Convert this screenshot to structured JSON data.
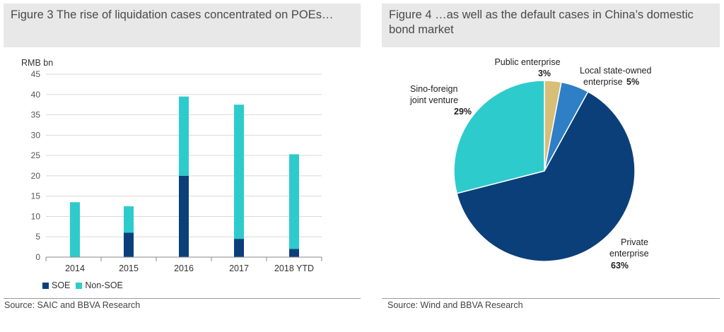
{
  "left_panel": {
    "title": "Figure 3 The rise of liquidation cases concentrated on POEs…",
    "source": "Source: SAIC and BBVA Research"
  },
  "right_panel": {
    "title": "Figure 4 …as well as the default cases in China’s domestic bond market",
    "source": "Source: Wind and BBVA Research"
  },
  "colors": {
    "soe": "#0b3f7a",
    "non_soe": "#2ecbcc",
    "grid": "#d9d9d9",
    "axis": "#888888",
    "pie_public": "#d8bf77",
    "pie_local": "#2e7fc6",
    "pie_private": "#0b3f7a",
    "pie_sino": "#2ecbcc"
  },
  "chart_data": [
    {
      "type": "bar",
      "stacked": true,
      "ylabel": "RMB bn",
      "ylim": [
        0,
        45
      ],
      "yticks": [
        0,
        5,
        10,
        15,
        20,
        25,
        30,
        35,
        40,
        45
      ],
      "grid": true,
      "categories": [
        "2014",
        "2015",
        "2016",
        "2017",
        "2018 YTD"
      ],
      "series": [
        {
          "name": "SOE",
          "values": [
            0,
            6,
            20,
            4.5,
            2
          ]
        },
        {
          "name": "Non-SOE",
          "values": [
            13.5,
            6.5,
            19.5,
            33,
            23.3
          ]
        }
      ],
      "legend": [
        "SOE",
        "Non-SOE"
      ],
      "legend_position": "bottom-left"
    },
    {
      "type": "pie",
      "slices": [
        {
          "label": "Public enterprise",
          "pct": "3%",
          "value": 3
        },
        {
          "label": "Local state-owned enterprise",
          "label_line1": "Local state-owned",
          "label_line2": "enterprise",
          "pct": "5%",
          "value": 5
        },
        {
          "label": "Private enterprise",
          "label_line1": "Private",
          "label_line2": "enterprise",
          "pct": "63%",
          "value": 63
        },
        {
          "label": "Sino-foreign joint venture",
          "label_line1": "Sino-foreign",
          "label_line2": "joint venture",
          "pct": "29%",
          "value": 29
        }
      ]
    }
  ]
}
